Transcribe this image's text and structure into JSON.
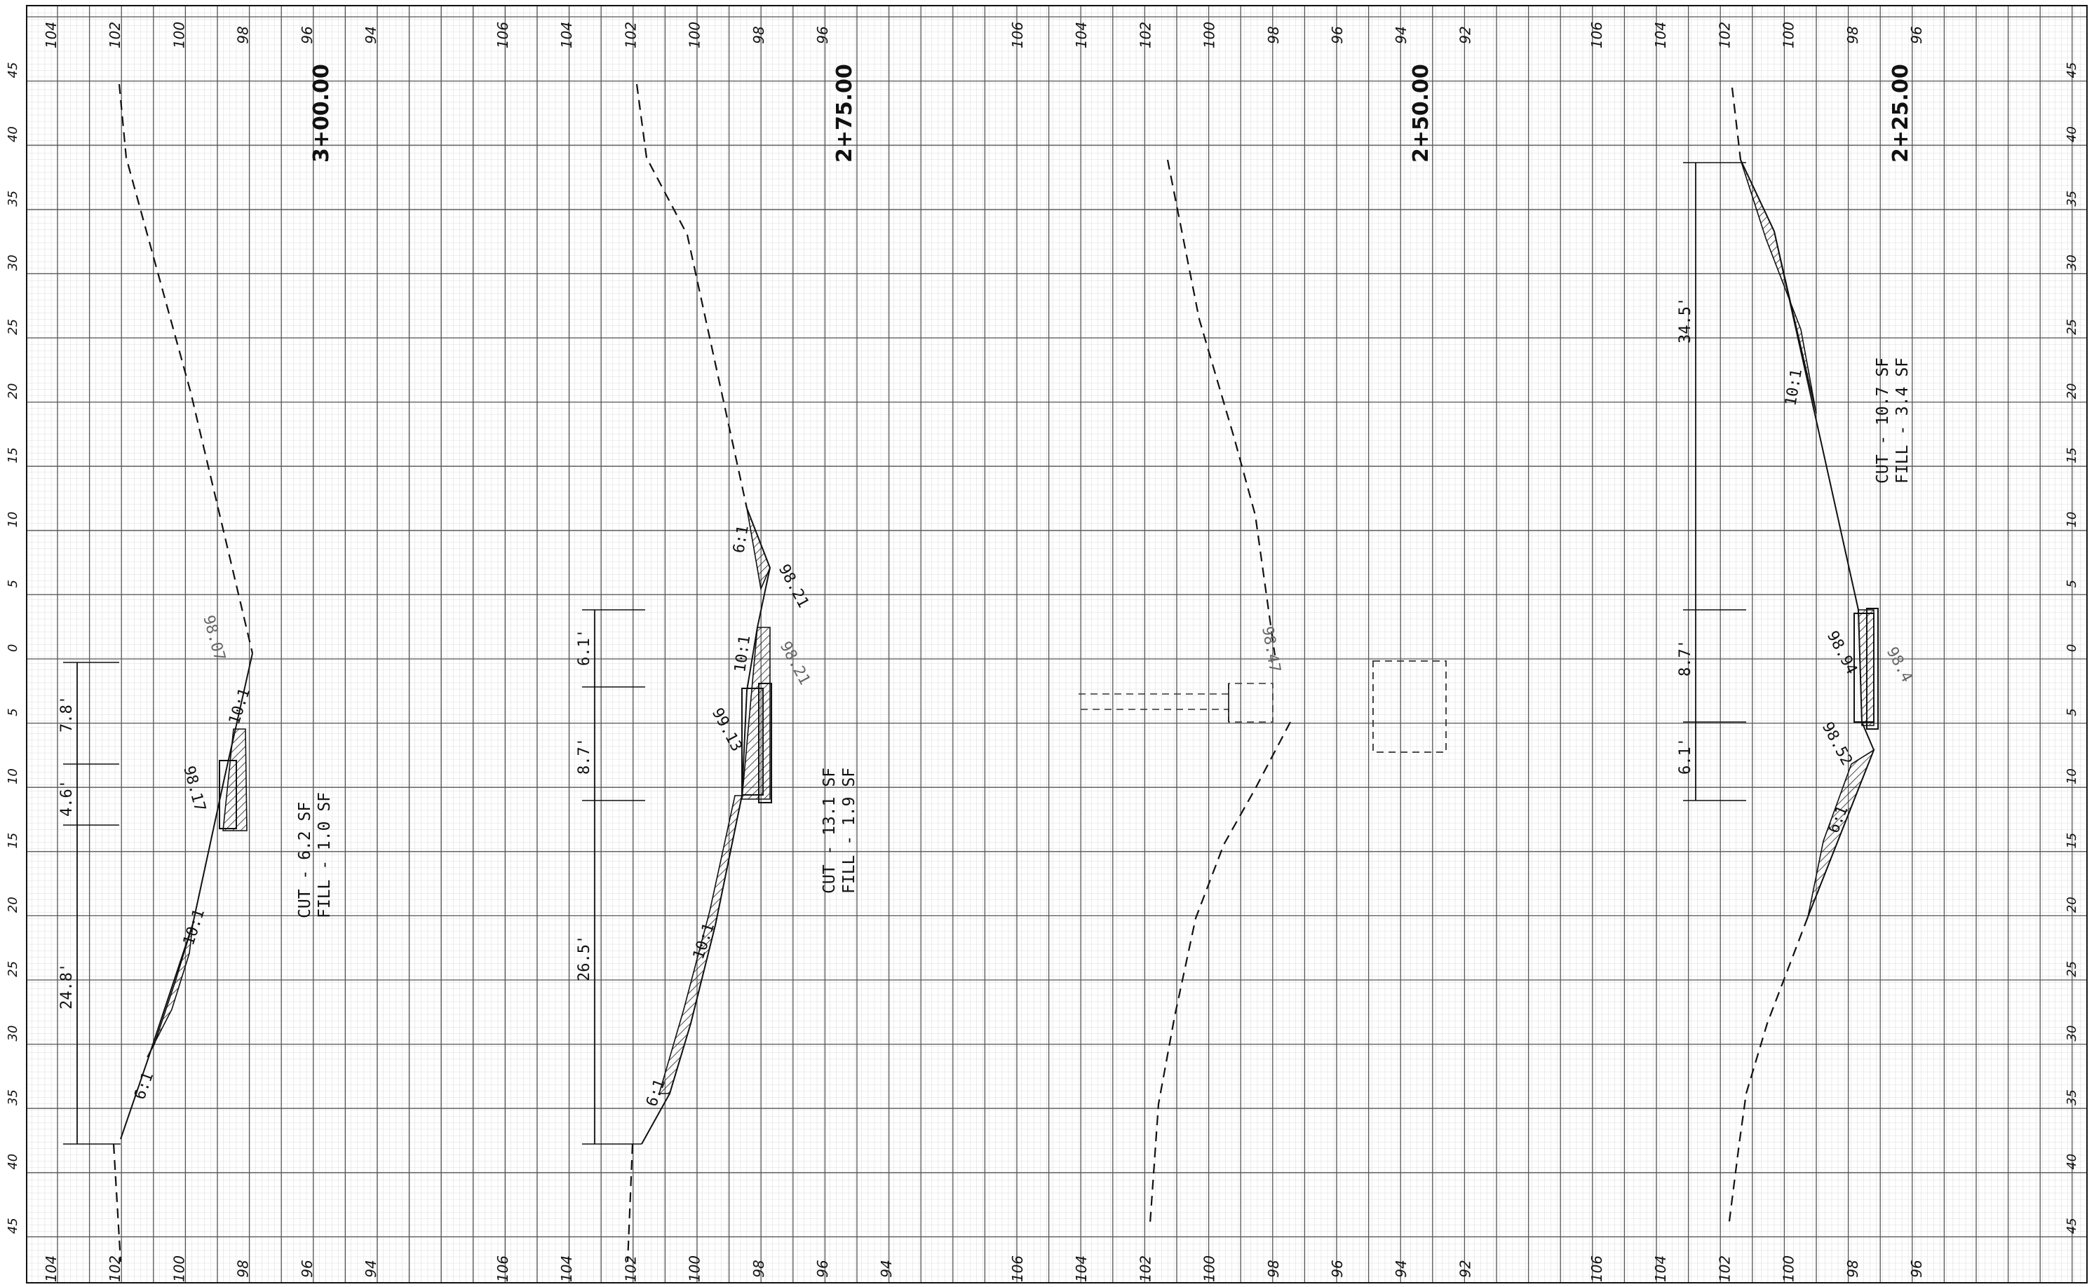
{
  "axis_offsets": [
    "45",
    "40",
    "35",
    "30",
    "25",
    "20",
    "15",
    "10",
    "5",
    "0",
    "5",
    "10",
    "15",
    "20",
    "25",
    "30",
    "35",
    "40",
    "45"
  ],
  "sections": [
    {
      "station": "3+00.00",
      "elev_labels_top": [
        "104",
        "102",
        "100",
        "98",
        "96",
        "94"
      ],
      "elev_labels_bottom": [
        "104",
        "102",
        "100",
        "98",
        "96",
        "94"
      ],
      "cut_label": "CUT - 6.2 SF",
      "fill_label": "FILL - 1.0 SF",
      "dims": [
        "7.8'",
        "4.6'",
        "24.8'"
      ],
      "slopes": [
        "10:1",
        "10:1",
        "6:1"
      ],
      "spots": [
        "98.07",
        "98.17"
      ]
    },
    {
      "station": "2+75.00",
      "elev_labels_top": [
        "106",
        "104",
        "102",
        "100",
        "98",
        "96"
      ],
      "elev_labels_bottom": [
        "106",
        "104",
        "102",
        "100",
        "98",
        "96",
        "94"
      ],
      "cut_label": "CUT - 13.1 SF",
      "fill_label": "FILL - 1.9 SF",
      "dims": [
        "6.1'",
        "8.7'",
        "26.5'"
      ],
      "slopes": [
        "6:1",
        "10:1",
        "10:1",
        "6:1"
      ],
      "spots": [
        "98.21",
        "98.21",
        "99.13"
      ]
    },
    {
      "station": "2+50.00",
      "elev_labels_top": [
        "106",
        "104",
        "102",
        "100",
        "98",
        "96",
        "94",
        "92"
      ],
      "elev_labels_bottom": [
        "106",
        "104",
        "102",
        "100",
        "98",
        "96",
        "94",
        "92"
      ],
      "spots": [
        "98.47"
      ]
    },
    {
      "station": "2+25.00",
      "elev_labels_top": [
        "106",
        "104",
        "102",
        "100",
        "98",
        "96"
      ],
      "elev_labels_bottom": [
        "106",
        "104",
        "102",
        "100",
        "98",
        "96"
      ],
      "cut_label": "CUT - 10.7 SF",
      "fill_label": "FILL - 3.4 SF",
      "dims": [
        "34.5'",
        "8.7'",
        "6.1'"
      ],
      "slopes": [
        "10:1",
        "6:1"
      ],
      "spots": [
        "98.94",
        "98.52",
        "98.4"
      ]
    }
  ],
  "colors": {
    "grid_minor": "#cfcfcf",
    "grid_major": "#555555",
    "ink": "#111111",
    "hatch": "#222222"
  }
}
